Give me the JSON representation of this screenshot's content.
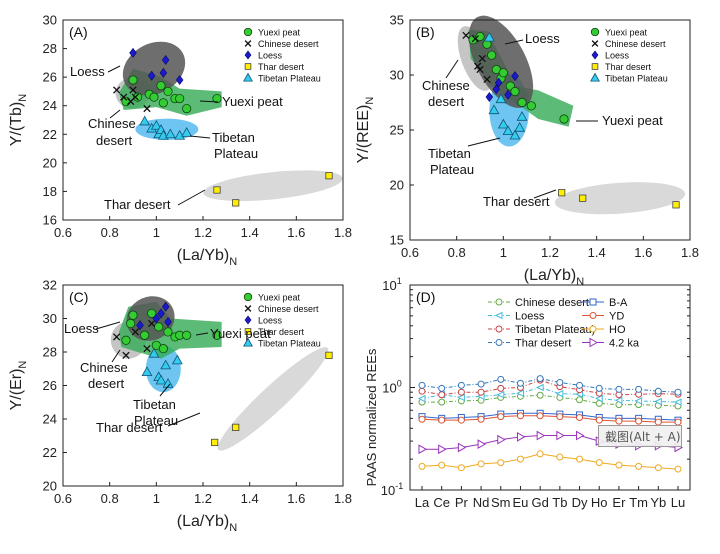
{
  "colors": {
    "yuexi": "#33cc33",
    "loess_env": "#555555",
    "yuexi_env": "#33aa55",
    "tibet_env": "#55bbee",
    "chinese_env": "#bbbbbb",
    "thar_env": "#cccccc",
    "loess_marker": "#1a1acc",
    "thar_marker": "#ffee00",
    "tibet_marker": "#33ccee"
  },
  "legend_scatter": [
    "Yuexi peat",
    "Chinese desert",
    "Loess",
    "Thar desert",
    "Tibetan Plateau"
  ],
  "annotations": {
    "loess": "Loess",
    "yuexi": "Yuexi peat",
    "chinese1": "Chinese",
    "chinese2": "desert",
    "tibet1": "Tibetan",
    "tibet2": "Plateau",
    "thar": "Thar desert"
  },
  "screenshot_button": "截图(Alt + A)",
  "chart_data": [
    {
      "type": "scatter",
      "panel": "(A)",
      "xlabel": "(La/Yb)",
      "xlabel_sub": "N",
      "ylabel": "Y/(Tb)",
      "ylabel_sub": "N",
      "xlim": [
        0.6,
        1.8
      ],
      "ylim": [
        16,
        30
      ],
      "xticks": [
        "0.6",
        "0.8",
        "1",
        "1.2",
        "1.4",
        "1.6",
        "1.8"
      ],
      "yticks": [
        "16",
        "18",
        "20",
        "22",
        "24",
        "26",
        "28",
        "30"
      ],
      "series": [
        {
          "name": "Yuexi peat",
          "points": [
            [
              0.87,
              24.3
            ],
            [
              0.9,
              25.8
            ],
            [
              0.92,
              24.6
            ],
            [
              0.97,
              24.8
            ],
            [
              0.99,
              24.6
            ],
            [
              1.02,
              25.4
            ],
            [
              1.03,
              24.2
            ],
            [
              1.05,
              25
            ],
            [
              1.08,
              24.5
            ],
            [
              1.1,
              24.5
            ],
            [
              1.13,
              23.8
            ],
            [
              1.26,
              24.5
            ]
          ]
        },
        {
          "name": "Chinese desert",
          "points": [
            [
              0.83,
              25.1
            ],
            [
              0.86,
              24.6
            ],
            [
              0.89,
              24.3
            ],
            [
              0.9,
              25.1
            ],
            [
              0.91,
              24.6
            ],
            [
              0.96,
              23.8
            ]
          ]
        },
        {
          "name": "Loess",
          "points": [
            [
              0.9,
              27.7
            ],
            [
              0.98,
              26.1
            ],
            [
              1.03,
              26.3
            ],
            [
              1.04,
              27.2
            ],
            [
              1.1,
              25.8
            ]
          ]
        },
        {
          "name": "Thar desert",
          "points": [
            [
              1.26,
              18.1
            ],
            [
              1.34,
              17.2
            ],
            [
              1.74,
              19.1
            ]
          ]
        },
        {
          "name": "Tibetan Plateau",
          "points": [
            [
              0.95,
              22.9
            ],
            [
              0.98,
              22.4
            ],
            [
              1,
              22.6
            ],
            [
              1.01,
              22
            ],
            [
              1.02,
              22.3
            ],
            [
              1.03,
              21.9
            ],
            [
              1.06,
              22
            ],
            [
              1.1,
              21.9
            ],
            [
              1.13,
              22.1
            ]
          ]
        }
      ]
    },
    {
      "type": "scatter",
      "panel": "(B)",
      "xlabel": "(La/Yb)",
      "xlabel_sub": "N",
      "ylabel": "Y/(REE)",
      "ylabel_sub": "N",
      "xlim": [
        0.6,
        1.8
      ],
      "ylim": [
        15,
        35
      ],
      "xticks": [
        "0.6",
        "0.8",
        "1",
        "1.2",
        "1.4",
        "1.6",
        "1.8"
      ],
      "yticks": [
        "15",
        "20",
        "25",
        "30",
        "35"
      ],
      "series": [
        {
          "name": "Yuexi peat",
          "points": [
            [
              0.87,
              33.2
            ],
            [
              0.9,
              33.5
            ],
            [
              0.93,
              32.8
            ],
            [
              0.95,
              31.8
            ],
            [
              0.97,
              30.5
            ],
            [
              0.99,
              29.7
            ],
            [
              1,
              30.2
            ],
            [
              1.03,
              29
            ],
            [
              1.05,
              28.5
            ],
            [
              1.08,
              27.5
            ],
            [
              1.12,
              27.2
            ],
            [
              1.26,
              26
            ]
          ]
        },
        {
          "name": "Chinese desert",
          "points": [
            [
              0.84,
              33.6
            ],
            [
              0.88,
              33.3
            ],
            [
              0.89,
              30.8
            ],
            [
              0.9,
              30.5
            ],
            [
              0.91,
              31.5
            ],
            [
              0.93,
              29.6
            ]
          ]
        },
        {
          "name": "Loess",
          "points": [
            [
              0.94,
              28
            ],
            [
              0.97,
              28.7
            ],
            [
              0.98,
              29.3
            ],
            [
              1.02,
              28.2
            ],
            [
              1.05,
              29.9
            ]
          ]
        },
        {
          "name": "Thar desert",
          "points": [
            [
              1.25,
              19.3
            ],
            [
              1.34,
              18.8
            ],
            [
              1.74,
              18.2
            ]
          ]
        },
        {
          "name": "Tibetan Plateau",
          "points": [
            [
              0.94,
              33.4
            ],
            [
              0.96,
              26.8
            ],
            [
              0.99,
              27.8
            ],
            [
              1,
              25.5
            ],
            [
              1.02,
              24.9
            ],
            [
              1.05,
              24.5
            ],
            [
              1.07,
              25.2
            ],
            [
              1.08,
              26.2
            ]
          ]
        }
      ]
    },
    {
      "type": "scatter",
      "panel": "(C)",
      "xlabel": "(La/Yb)",
      "xlabel_sub": "N",
      "ylabel": "Y/(Er)",
      "ylabel_sub": "N",
      "xlim": [
        0.6,
        1.8
      ],
      "ylim": [
        20,
        32
      ],
      "xticks": [
        "0.6",
        "0.8",
        "1",
        "1.2",
        "1.4",
        "1.6",
        "1.8"
      ],
      "yticks": [
        "20",
        "22",
        "24",
        "26",
        "28",
        "30",
        "32"
      ],
      "series": [
        {
          "name": "Yuexi peat",
          "points": [
            [
              0.87,
              28.7
            ],
            [
              0.89,
              29.7
            ],
            [
              0.9,
              30.2
            ],
            [
              0.95,
              29
            ],
            [
              0.98,
              30.3
            ],
            [
              1,
              28.4
            ],
            [
              1.01,
              29.5
            ],
            [
              1.03,
              28.2
            ],
            [
              1.05,
              29.2
            ],
            [
              1.08,
              28.9
            ],
            [
              1.1,
              29
            ],
            [
              1.13,
              29
            ],
            [
              1.26,
              29
            ]
          ]
        },
        {
          "name": "Chinese desert",
          "points": [
            [
              0.83,
              28.9
            ],
            [
              0.87,
              27.8
            ],
            [
              0.91,
              29.2
            ],
            [
              0.96,
              28.2
            ],
            [
              0.98,
              29.7
            ]
          ]
        },
        {
          "name": "Loess",
          "points": [
            [
              0.93,
              29.6
            ],
            [
              1,
              30
            ],
            [
              1.02,
              30.3
            ],
            [
              1.04,
              30.7
            ],
            [
              1.05,
              29.8
            ]
          ]
        },
        {
          "name": "Thar desert",
          "points": [
            [
              1.25,
              22.6
            ],
            [
              1.34,
              23.5
            ],
            [
              1.74,
              27.8
            ]
          ]
        },
        {
          "name": "Tibetan Plateau",
          "points": [
            [
              0.96,
              26.8
            ],
            [
              0.99,
              27.9
            ],
            [
              1.01,
              26.5
            ],
            [
              1.02,
              26.3
            ],
            [
              1.04,
              27.2
            ],
            [
              1.05,
              26.1
            ],
            [
              1.09,
              27.5
            ]
          ]
        }
      ]
    },
    {
      "type": "line",
      "panel": "(D)",
      "ylabel": "PAAS normalized REEs",
      "ylog": true,
      "ylim": [
        0.1,
        10
      ],
      "yticks": [
        "10",
        "10",
        "10"
      ],
      "ytick_exp": [
        "-1",
        "0",
        "1"
      ],
      "categories": [
        "La",
        "Ce",
        "Pr",
        "Nd",
        "Sm",
        "Eu",
        "Gd",
        "Tb",
        "Dy",
        "Ho",
        "Er",
        "Tm",
        "Yb",
        "Lu"
      ],
      "series": [
        {
          "name": "Chinese desert",
          "color": "#66aa44",
          "marker": "circle",
          "dash": true,
          "values": [
            0.72,
            0.72,
            0.74,
            0.75,
            0.8,
            0.82,
            0.84,
            0.8,
            0.76,
            0.7,
            0.68,
            0.68,
            0.67,
            0.66
          ]
        },
        {
          "name": "Loess",
          "color": "#44bbdd",
          "marker": "triangle-left",
          "dash": true,
          "values": [
            0.78,
            0.85,
            0.8,
            0.82,
            0.85,
            0.88,
            1.0,
            0.87,
            0.86,
            0.78,
            0.75,
            0.74,
            0.73,
            0.72
          ]
        },
        {
          "name": "Tibetan Plateau)",
          "color": "#cc4444",
          "marker": "circle",
          "dash": true,
          "values": [
            0.92,
            0.85,
            0.9,
            0.9,
            0.98,
            1.0,
            1.18,
            1.02,
            0.95,
            0.88,
            0.85,
            0.86,
            0.87,
            0.86
          ]
        },
        {
          "name": "Thar desert",
          "color": "#3377bb",
          "marker": "circle",
          "dash": true,
          "values": [
            1.05,
            0.98,
            1.05,
            1.08,
            1.2,
            1.1,
            1.22,
            1.12,
            1.05,
            0.98,
            0.96,
            0.96,
            0.92,
            0.9
          ]
        },
        {
          "name": "B-A",
          "color": "#3366cc",
          "marker": "square",
          "dash": false,
          "values": [
            0.52,
            0.5,
            0.51,
            0.52,
            0.55,
            0.56,
            0.56,
            0.55,
            0.54,
            0.51,
            0.5,
            0.5,
            0.49,
            0.48
          ]
        },
        {
          "name": "YD",
          "color": "#dd5533",
          "marker": "circle",
          "dash": false,
          "values": [
            0.49,
            0.48,
            0.48,
            0.49,
            0.52,
            0.53,
            0.53,
            0.52,
            0.51,
            0.48,
            0.47,
            0.47,
            0.46,
            0.46
          ]
        },
        {
          "name": "HO",
          "color": "#eeaa22",
          "marker": "circle",
          "dash": false,
          "values": [
            0.17,
            0.175,
            0.165,
            0.18,
            0.185,
            0.2,
            0.225,
            0.21,
            0.2,
            0.185,
            0.175,
            0.17,
            0.165,
            0.16
          ]
        },
        {
          "name": "4.2 ka",
          "color": "#9933bb",
          "marker": "triangle-right",
          "dash": false,
          "values": [
            0.25,
            0.25,
            0.26,
            0.28,
            0.31,
            0.33,
            0.34,
            0.34,
            0.34,
            0.3,
            0.28,
            0.27,
            0.27,
            0.26
          ]
        }
      ]
    }
  ]
}
